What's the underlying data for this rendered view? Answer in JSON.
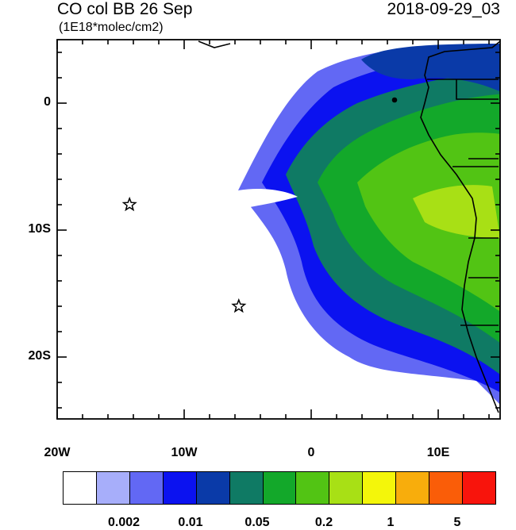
{
  "title": "CO col BB 26 Sep",
  "datetime": "2018-09-29_03",
  "units": "(1E18*molec/cm2)",
  "lat_ticks": [
    "0",
    "10S",
    "20S"
  ],
  "lon_ticks": [
    "20W",
    "10W",
    "0",
    "10E"
  ],
  "colorbar": {
    "colors": [
      "#ffffff",
      "#a7aefa",
      "#6268f4",
      "#0b12f0",
      "#0a3aa8",
      "#0f7a64",
      "#13a82a",
      "#52c414",
      "#a8e015",
      "#f4f60a",
      "#f8ad0c",
      "#fa5d08",
      "#f8140c"
    ],
    "labels": [
      "0.002",
      "0.01",
      "0.05",
      "0.2",
      "1",
      "5"
    ]
  },
  "markers": [
    {
      "name": "star-marker",
      "lon": -14.3,
      "lat": -8.0
    },
    {
      "name": "star-marker",
      "lon": -5.7,
      "lat": -16.0
    }
  ]
}
